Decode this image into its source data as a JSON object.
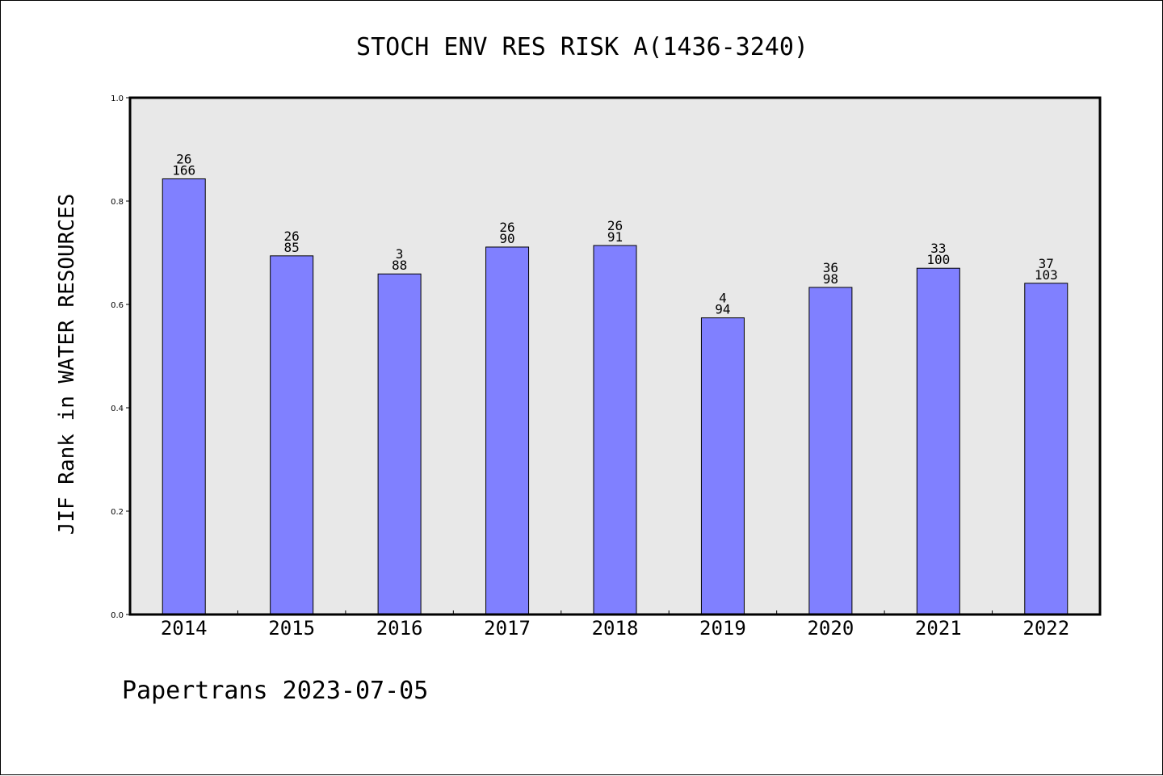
{
  "chart_data": {
    "type": "bar",
    "title": "STOCH ENV RES RISK A(1436-3240)",
    "ylabel": "JIF Rank in WATER RESOURCES",
    "xlabel": "",
    "ylim": [
      0,
      1.0
    ],
    "yticks": [
      "0.0",
      "0.2",
      "0.4",
      "0.6",
      "0.8",
      "1.0"
    ],
    "ytick_values": [
      0.0,
      0.2,
      0.4,
      0.6,
      0.8,
      1.0
    ],
    "categories": [
      "2014",
      "2015",
      "2016",
      "2017",
      "2018",
      "2019",
      "2020",
      "2021",
      "2022"
    ],
    "values": [
      0.843,
      0.694,
      0.659,
      0.711,
      0.714,
      0.574,
      0.633,
      0.67,
      0.641
    ],
    "annotations": [
      {
        "rank": "26",
        "total": "166"
      },
      {
        "rank": "26",
        "total": "85"
      },
      {
        "rank": "3",
        "total": "88"
      },
      {
        "rank": "26",
        "total": "90"
      },
      {
        "rank": "26",
        "total": "91"
      },
      {
        "rank": "4",
        "total": "94"
      },
      {
        "rank": "36",
        "total": "98"
      },
      {
        "rank": "33",
        "total": "100"
      },
      {
        "rank": "37",
        "total": "103"
      }
    ],
    "grid": false,
    "colors": {
      "bar": "#8080ff",
      "plot_background": "#e8e8e8",
      "axis": "#000000"
    }
  },
  "footer": {
    "text": "Papertrans 2023-07-05"
  }
}
